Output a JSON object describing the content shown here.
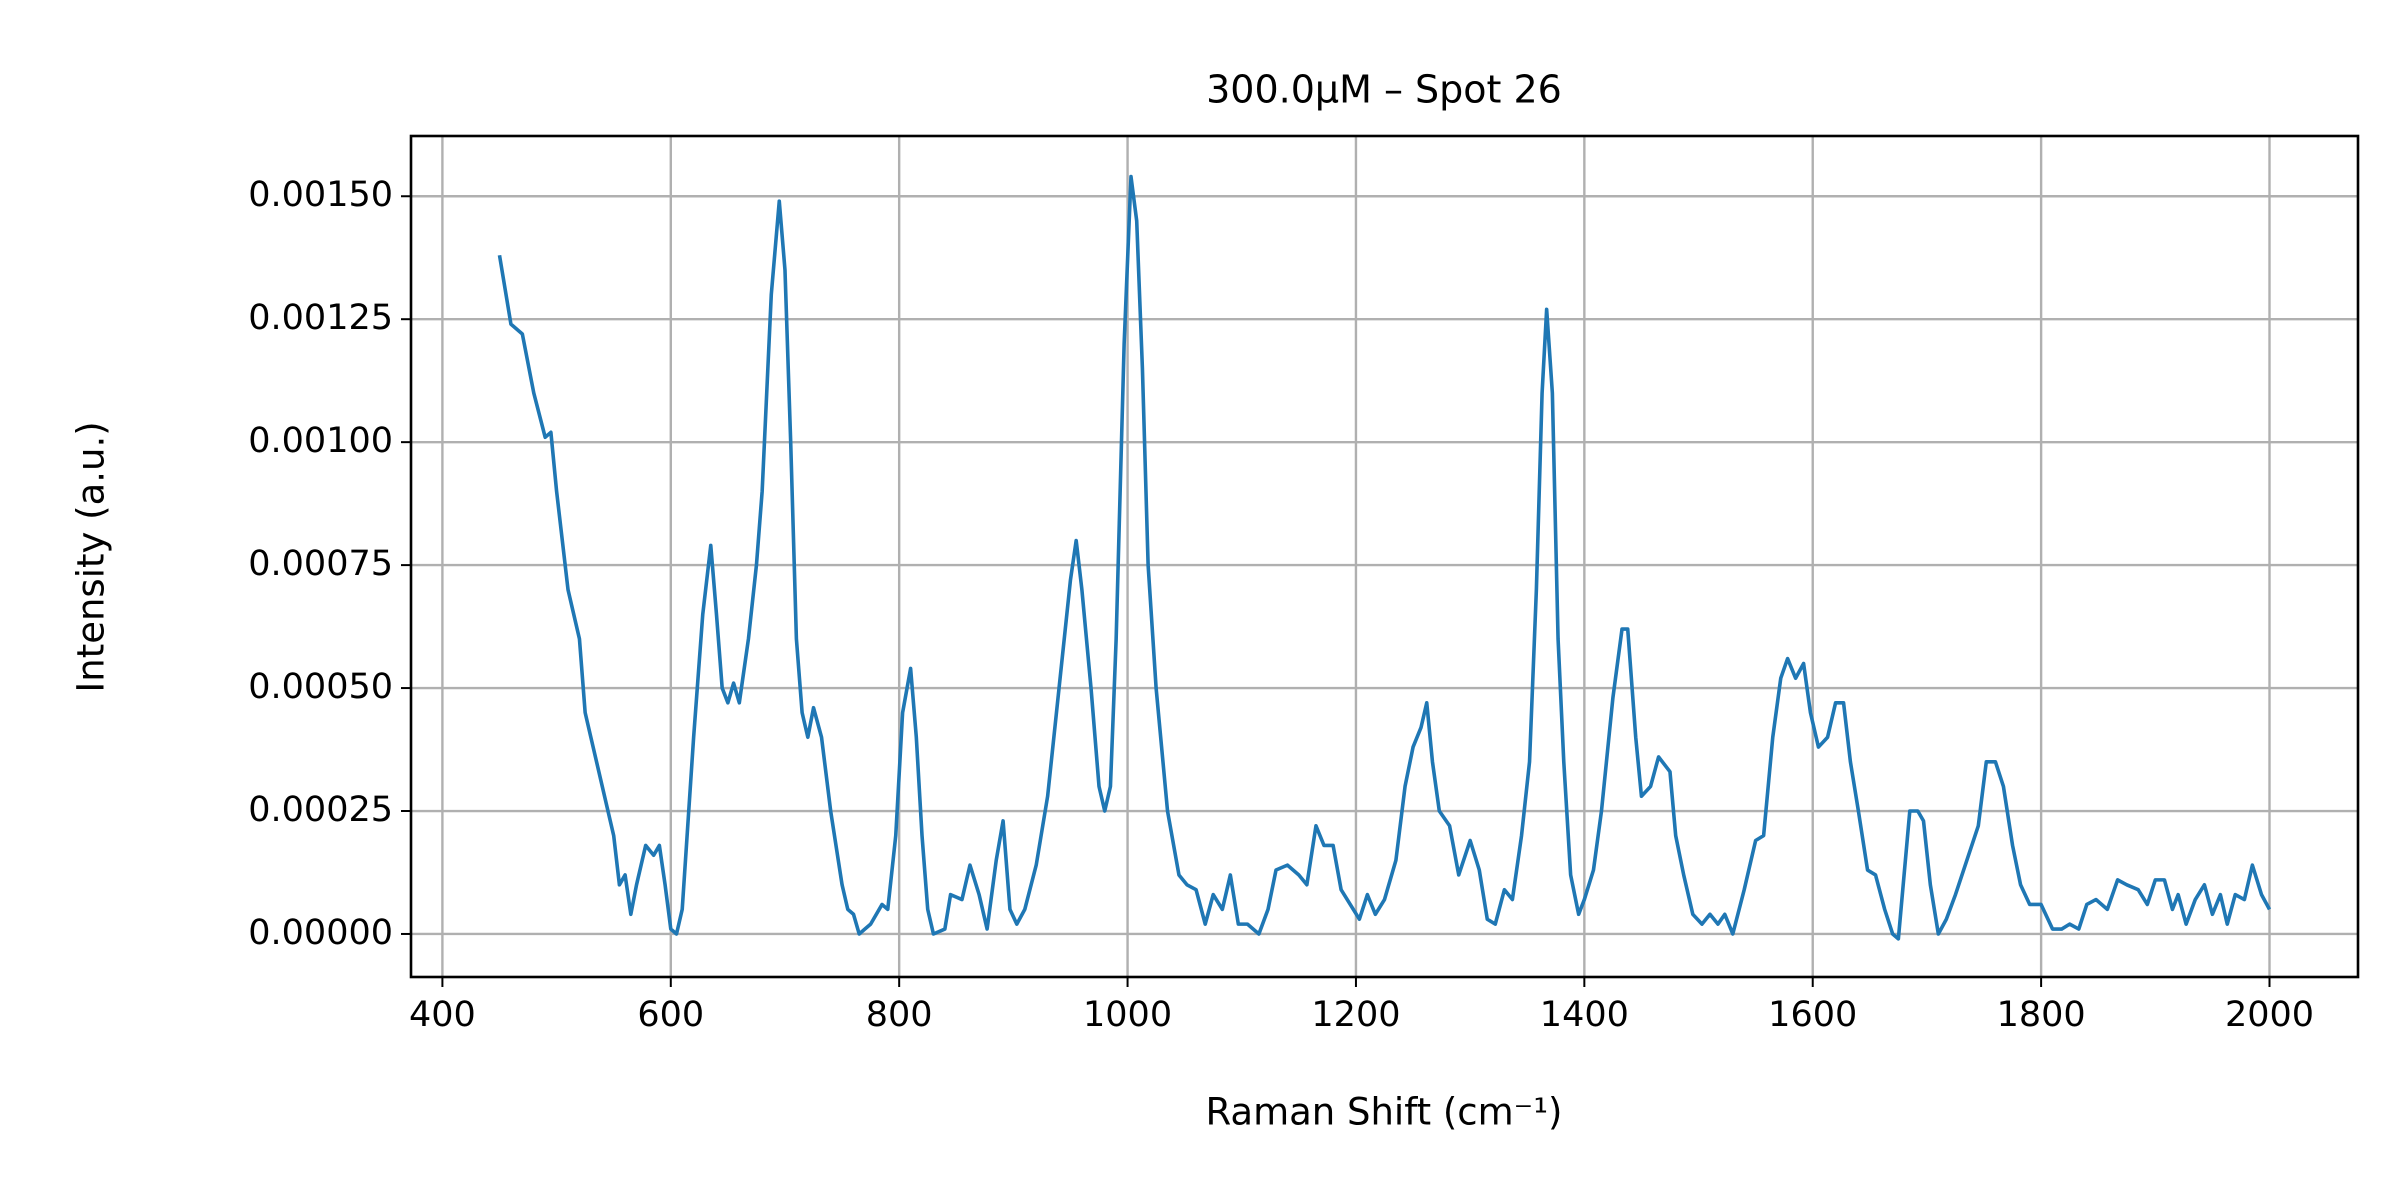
{
  "chart_data": {
    "type": "line",
    "title": "300.0μM – Spot 26",
    "x_label": "Raman Shift (cm⁻¹)",
    "y_label": "Intensity (a.u.)",
    "color": "#1f77b4",
    "grid": true,
    "xlim": [
      372.5,
      2077.5
    ],
    "xticks": [
      400,
      600,
      800,
      1000,
      1200,
      1400,
      1600,
      1800,
      2000
    ],
    "ylim": [
      -8.75e-05,
      0.0016225
    ],
    "yticks": [
      {
        "value": 0,
        "label": "0.00000"
      },
      {
        "value": 0.00025,
        "label": "0.00025"
      },
      {
        "value": 0.0005,
        "label": "0.00050"
      },
      {
        "value": 0.00075,
        "label": "0.00075"
      },
      {
        "value": 0.001,
        "label": "0.00100"
      },
      {
        "value": 0.00125,
        "label": "0.00125"
      },
      {
        "value": 0.0015,
        "label": "0.00150"
      }
    ],
    "x": [
      450,
      460,
      470,
      480,
      490,
      495,
      500,
      510,
      520,
      525,
      530,
      540,
      550,
      555,
      560,
      565,
      570,
      578,
      585,
      590,
      595,
      600,
      605,
      610,
      620,
      628,
      635,
      640,
      645,
      650,
      655,
      660,
      668,
      675,
      680,
      688,
      695,
      700,
      705,
      710,
      715,
      720,
      725,
      732,
      740,
      750,
      755,
      760,
      765,
      770,
      775,
      785,
      790,
      797,
      803,
      810,
      815,
      820,
      825,
      830,
      840,
      845,
      855,
      862,
      870,
      877,
      885,
      891,
      897,
      903,
      910,
      920,
      930,
      940,
      950,
      955,
      960,
      968,
      975,
      980,
      985,
      990,
      997,
      1003,
      1008,
      1013,
      1018,
      1025,
      1035,
      1045,
      1052,
      1060,
      1068,
      1075,
      1083,
      1090,
      1097,
      1105,
      1115,
      1123,
      1130,
      1140,
      1150,
      1157,
      1165,
      1172,
      1180,
      1187,
      1195,
      1203,
      1210,
      1217,
      1225,
      1235,
      1243,
      1250,
      1257,
      1262,
      1267,
      1273,
      1282,
      1290,
      1300,
      1308,
      1315,
      1322,
      1330,
      1337,
      1345,
      1352,
      1358,
      1363,
      1367,
      1372,
      1377,
      1382,
      1388,
      1395,
      1400,
      1408,
      1415,
      1425,
      1433,
      1438,
      1445,
      1450,
      1458,
      1465,
      1475,
      1480,
      1487,
      1495,
      1503,
      1510,
      1517,
      1523,
      1530,
      1540,
      1550,
      1557,
      1565,
      1572,
      1578,
      1585,
      1592,
      1598,
      1605,
      1613,
      1620,
      1627,
      1633,
      1640,
      1648,
      1655,
      1663,
      1670,
      1675,
      1680,
      1685,
      1692,
      1697,
      1703,
      1710,
      1717,
      1725,
      1735,
      1745,
      1752,
      1760,
      1767,
      1775,
      1782,
      1790,
      1800,
      1810,
      1818,
      1825,
      1833,
      1840,
      1848,
      1858,
      1867,
      1875,
      1885,
      1893,
      1900,
      1908,
      1915,
      1920,
      1927,
      1935,
      1943,
      1950,
      1957,
      1963,
      1970,
      1978,
      1985,
      1993,
      2000
    ],
    "values": [
      0.00138,
      0.00124,
      0.00122,
      0.0011,
      0.00101,
      0.00102,
      0.0009,
      0.0007,
      0.0006,
      0.00045,
      0.0004,
      0.0003,
      0.0002,
      0.0001,
      0.00012,
      4e-05,
      0.0001,
      0.00018,
      0.00016,
      0.00018,
      0.0001,
      1e-05,
      0,
      5e-05,
      0.0004,
      0.00065,
      0.00079,
      0.00065,
      0.0005,
      0.00047,
      0.00051,
      0.00047,
      0.0006,
      0.00075,
      0.0009,
      0.0013,
      0.00149,
      0.00135,
      0.001,
      0.0006,
      0.00045,
      0.0004,
      0.00046,
      0.0004,
      0.00025,
      0.0001,
      5e-05,
      4e-05,
      0,
      1e-05,
      2e-05,
      6e-05,
      5e-05,
      0.0002,
      0.00045,
      0.00054,
      0.0004,
      0.0002,
      5e-05,
      0,
      1e-05,
      8e-05,
      7e-05,
      0.00014,
      8e-05,
      1e-05,
      0.00015,
      0.00023,
      5e-05,
      2e-05,
      5e-05,
      0.00014,
      0.00028,
      0.0005,
      0.00072,
      0.0008,
      0.0007,
      0.0005,
      0.0003,
      0.00025,
      0.0003,
      0.0006,
      0.0012,
      0.00154,
      0.00145,
      0.00115,
      0.00075,
      0.0005,
      0.00025,
      0.00012,
      0.0001,
      9e-05,
      2e-05,
      8e-05,
      5e-05,
      0.00012,
      2e-05,
      2e-05,
      0,
      5e-05,
      0.00013,
      0.00014,
      0.00012,
      0.0001,
      0.00022,
      0.00018,
      0.00018,
      9e-05,
      6e-05,
      3e-05,
      8e-05,
      4e-05,
      7e-05,
      0.00015,
      0.0003,
      0.00038,
      0.00042,
      0.00047,
      0.00035,
      0.00025,
      0.00022,
      0.00012,
      0.00019,
      0.00013,
      3e-05,
      2e-05,
      9e-05,
      7e-05,
      0.0002,
      0.00035,
      0.0007,
      0.0011,
      0.00127,
      0.0011,
      0.0006,
      0.00035,
      0.00012,
      4e-05,
      7e-05,
      0.00013,
      0.00025,
      0.00048,
      0.00062,
      0.00062,
      0.0004,
      0.00028,
      0.0003,
      0.00036,
      0.00033,
      0.0002,
      0.00012,
      4e-05,
      2e-05,
      4e-05,
      2e-05,
      4e-05,
      0,
      9e-05,
      0.00019,
      0.0002,
      0.0004,
      0.00052,
      0.00056,
      0.00052,
      0.00055,
      0.00045,
      0.00038,
      0.0004,
      0.00047,
      0.00047,
      0.00035,
      0.00025,
      0.00013,
      0.00012,
      5e-05,
      0,
      -1e-05,
      0.00012,
      0.00025,
      0.00025,
      0.00023,
      0.0001,
      0,
      3e-05,
      8e-05,
      0.00015,
      0.00022,
      0.00035,
      0.00035,
      0.0003,
      0.00018,
      0.0001,
      6e-05,
      6e-05,
      1e-05,
      1e-05,
      2e-05,
      1e-05,
      6e-05,
      7e-05,
      5e-05,
      0.00011,
      0.0001,
      9e-05,
      6e-05,
      0.00011,
      0.00011,
      5e-05,
      8e-05,
      2e-05,
      7e-05,
      0.0001,
      4e-05,
      8e-05,
      2e-05,
      8e-05,
      7e-05,
      0.00014,
      8e-05,
      5e-05
    ]
  }
}
